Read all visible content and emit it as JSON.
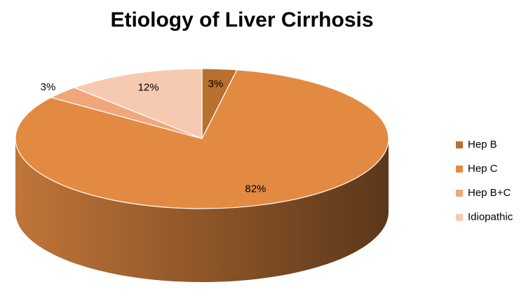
{
  "chart_data": {
    "type": "pie3d",
    "title": "Etiology of Liver Cirrhosis",
    "categories": [
      "Hep B",
      "Hep C",
      "Hep B+C",
      "Idiopathic"
    ],
    "values": [
      3,
      82,
      3,
      12
    ],
    "value_labels": [
      "3%",
      "82%",
      "3%",
      "12%"
    ],
    "colors": [
      "#b8702f",
      "#e38a42",
      "#f0a77a",
      "#f6cab1"
    ],
    "legend": "right"
  }
}
